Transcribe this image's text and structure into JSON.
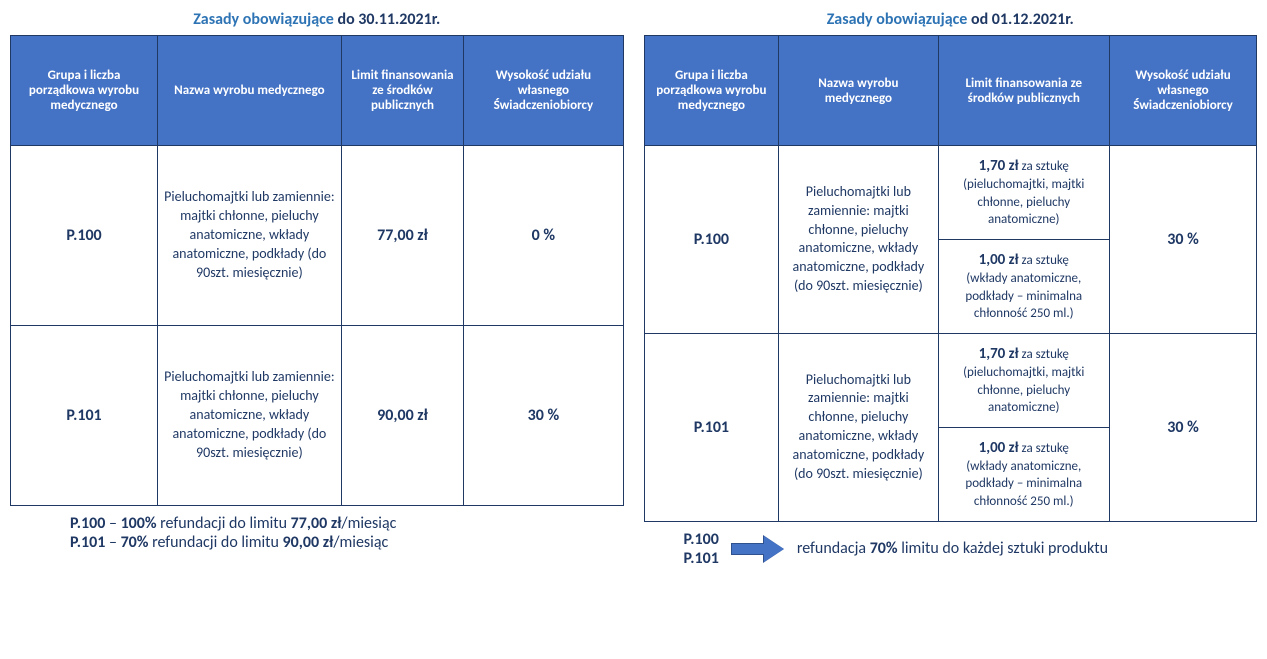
{
  "colors": {
    "header_bg": "#4472c4",
    "border": "#1f3864",
    "text_navy": "#1f3864",
    "text_blue": "#2e74b5",
    "white": "#ffffff"
  },
  "left": {
    "title_blue": "Zasady obowiązujące",
    "title_navy": " do 30.11.2021r.",
    "headers": {
      "h1": "Grupa i liczba porządkowa wyrobu medycznego",
      "h2": "Nazwa wyrobu medycznego",
      "h3": "Limit finansowania ze środków publicznych",
      "h4": "Wysokość udziału własnego Świadczeniobiorcy"
    },
    "rows": [
      {
        "code": "P.100",
        "desc": "Pieluchomajtki lub zamiennie: majtki chłonne, pieluchy anatomiczne, wkłady anatomiczne, podkłady (do 90szt. miesięcznie)",
        "limit": "77,00 zł",
        "share": "0 %"
      },
      {
        "code": "P.101",
        "desc": "Pieluchomajtki lub zamiennie: majtki chłonne, pieluchy anatomiczne, wkłady anatomiczne, podkłady (do 90szt. miesięcznie)",
        "limit": "90,00 zł",
        "share": "30 %"
      }
    ],
    "foot1_code": "P.100",
    "foot1_pct": "100%",
    "foot1_mid": " refundacji do limitu ",
    "foot1_val": "77,00 zł",
    "foot1_suffix": "/miesiąc",
    "foot2_code": "P.101",
    "foot2_pct": "70%",
    "foot2_mid": " refundacji do limitu ",
    "foot2_val": "90,00 zł",
    "foot2_suffix": "/miesiąc"
  },
  "right": {
    "title_blue": "Zasady obowiązujące",
    "title_navy": " od 01.12.2021r.",
    "headers": {
      "h1": "Grupa i liczba porządkowa wyrobu medycznego",
      "h2": "Nazwa wyrobu medycznego",
      "h3": "Limit finansowania ze środków publicznych",
      "h4": "Wysokość udziału własnego Świadczeniobiorcy"
    },
    "limit_a_price": "1,70 zł",
    "limit_a_unit": " za sztukę",
    "limit_a_note": "(pieluchomajtki, majtki chłonne, pieluchy anatomiczne)",
    "limit_b_price": "1,00 zł",
    "limit_b_unit": " za sztukę",
    "limit_b_note": "(wkłady anatomiczne, podkłady – minimalna chłonność 250 ml.)",
    "rows": [
      {
        "code": "P.100",
        "desc": "Pieluchomajtki lub zamiennie: majtki chłonne, pieluchy anatomiczne, wkłady anatomiczne, podkłady (do 90szt. miesięcznie)",
        "share": "30 %"
      },
      {
        "code": "P.101",
        "desc": "Pieluchomajtki lub zamiennie: majtki chłonne, pieluchy anatomiczne, wkłady anatomiczne, podkłady (do 90szt. miesięcznie)",
        "share": "30 %"
      }
    ],
    "foot_code1": "P.100",
    "foot_code2": "P.101",
    "foot_pre": "refundacja ",
    "foot_pct": "70%",
    "foot_post": " limitu do każdej sztuki produktu"
  }
}
